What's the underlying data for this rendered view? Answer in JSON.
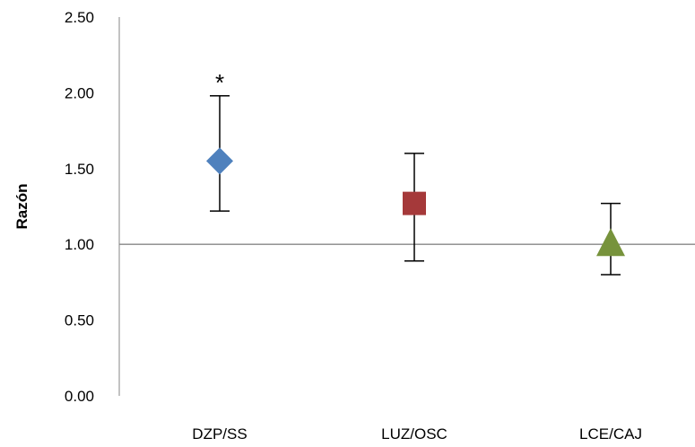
{
  "chart_data": {
    "type": "scatter",
    "title": "",
    "xlabel": "",
    "ylabel": "Razón",
    "ylim": [
      0,
      2.5
    ],
    "yticks": [
      "0.00",
      "0.50",
      "1.00",
      "1.50",
      "2.00",
      "2.50"
    ],
    "reference_line": 1.0,
    "grid": false,
    "categories": [
      "DZP/SS",
      "LUZ/OSC",
      "LCE/CAJ"
    ],
    "points": [
      {
        "category": "DZP/SS",
        "value": 1.55,
        "lower": 1.22,
        "upper": 1.98,
        "marker": "diamond",
        "color": "#4f81bd",
        "annotation": "*"
      },
      {
        "category": "LUZ/OSC",
        "value": 1.27,
        "lower": 0.89,
        "upper": 1.6,
        "marker": "square",
        "color": "#a5393a",
        "annotation": ""
      },
      {
        "category": "LCE/CAJ",
        "value": 1.0,
        "lower": 0.8,
        "upper": 1.27,
        "marker": "triangle",
        "color": "#77933c",
        "annotation": ""
      }
    ]
  }
}
